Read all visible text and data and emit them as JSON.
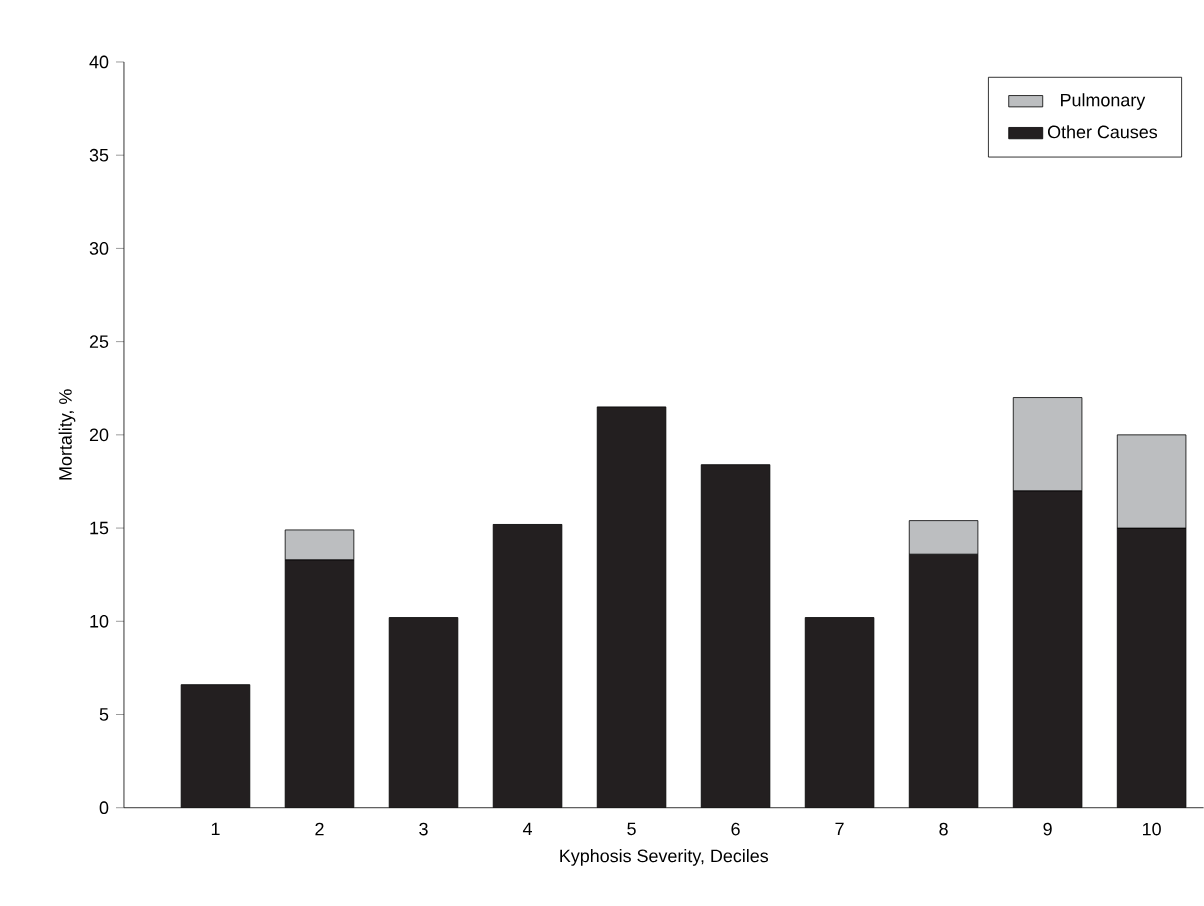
{
  "chart_data": {
    "type": "bar",
    "stacked": true,
    "xlabel": "Kyphosis Severity, Deciles",
    "ylabel": "Mortality, %",
    "categories": [
      "1",
      "2",
      "3",
      "4",
      "5",
      "6",
      "7",
      "8",
      "9",
      "10"
    ],
    "series": [
      {
        "name": "Other Causes",
        "color": "#231f20",
        "values": [
          6.6,
          13.3,
          10.2,
          15.2,
          21.5,
          18.4,
          10.2,
          13.6,
          17.0,
          15.0
        ]
      },
      {
        "name": "Pulmonary",
        "color": "#bcbec0",
        "values": [
          null,
          1.6,
          null,
          null,
          null,
          null,
          null,
          1.8,
          5.0,
          5.0
        ]
      }
    ],
    "ylim": [
      0,
      40
    ],
    "yticks": [
      0,
      5,
      10,
      15,
      20,
      25,
      30,
      35,
      40
    ],
    "grid": false,
    "legend": "top right"
  }
}
